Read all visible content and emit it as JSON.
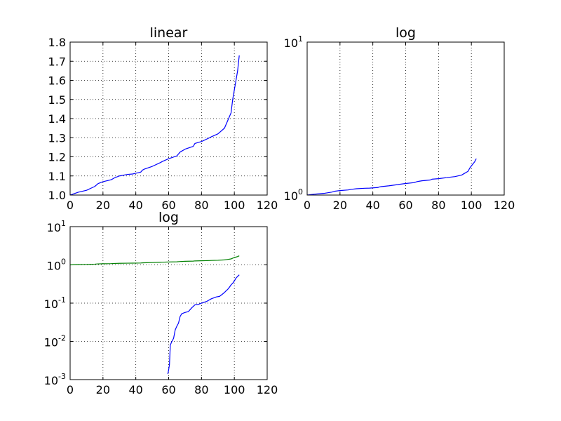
{
  "chart_data": [
    {
      "type": "line",
      "title": "linear",
      "xscale": "linear",
      "yscale": "linear",
      "xlim": [
        0,
        120
      ],
      "ylim": [
        1.0,
        1.8
      ],
      "xticks": [
        0,
        20,
        40,
        60,
        80,
        100,
        120
      ],
      "xtick_labels": [
        "0",
        "20",
        "40",
        "60",
        "80",
        "100",
        "120"
      ],
      "yticks": [
        1.0,
        1.1,
        1.2,
        1.3,
        1.4,
        1.5,
        1.6,
        1.7,
        1.8
      ],
      "ytick_labels": [
        "1.0",
        "1.1",
        "1.2",
        "1.3",
        "1.4",
        "1.5",
        "1.6",
        "1.7",
        "1.8"
      ],
      "grid": true,
      "series": [
        {
          "color": "#0000ff",
          "x": [
            0,
            5,
            10,
            15,
            17,
            20,
            25,
            27,
            30,
            35,
            38,
            40,
            43,
            44,
            45,
            50,
            55,
            56,
            60,
            65,
            67,
            68,
            70,
            75,
            76,
            80,
            85,
            86,
            90,
            94,
            95,
            96,
            97,
            98,
            99,
            100,
            101,
            102,
            103
          ],
          "y": [
            1.0,
            1.015,
            1.025,
            1.045,
            1.06,
            1.07,
            1.08,
            1.09,
            1.1,
            1.108,
            1.11,
            1.114,
            1.12,
            1.13,
            1.135,
            1.15,
            1.17,
            1.175,
            1.19,
            1.205,
            1.225,
            1.23,
            1.24,
            1.255,
            1.27,
            1.28,
            1.3,
            1.305,
            1.32,
            1.35,
            1.37,
            1.39,
            1.41,
            1.43,
            1.5,
            1.55,
            1.6,
            1.65,
            1.73
          ]
        }
      ]
    },
    {
      "type": "line",
      "title": "log",
      "xscale": "linear",
      "yscale": "log",
      "xlim": [
        0,
        120
      ],
      "ylim": [
        1,
        10
      ],
      "xticks": [
        0,
        20,
        40,
        60,
        80,
        100,
        120
      ],
      "xtick_labels": [
        "0",
        "20",
        "40",
        "60",
        "80",
        "100",
        "120"
      ],
      "yticks": [
        1,
        10
      ],
      "ytick_labels": [
        {
          "base": "10",
          "exp": "0"
        },
        {
          "base": "10",
          "exp": "1"
        }
      ],
      "grid": true,
      "series": [
        {
          "color": "#0000ff",
          "x": [
            0,
            5,
            10,
            15,
            17,
            20,
            25,
            27,
            30,
            35,
            38,
            40,
            43,
            44,
            45,
            50,
            55,
            56,
            60,
            65,
            67,
            68,
            70,
            75,
            76,
            80,
            85,
            86,
            90,
            94,
            95,
            96,
            97,
            98,
            99,
            100,
            101,
            102,
            103
          ],
          "y": [
            1.0,
            1.015,
            1.025,
            1.045,
            1.06,
            1.07,
            1.08,
            1.09,
            1.1,
            1.108,
            1.11,
            1.114,
            1.12,
            1.13,
            1.135,
            1.15,
            1.17,
            1.175,
            1.19,
            1.205,
            1.225,
            1.23,
            1.24,
            1.255,
            1.27,
            1.28,
            1.3,
            1.305,
            1.32,
            1.35,
            1.37,
            1.39,
            1.41,
            1.43,
            1.5,
            1.55,
            1.6,
            1.65,
            1.73
          ]
        }
      ]
    },
    {
      "type": "line",
      "title": "log",
      "xscale": "linear",
      "yscale": "log",
      "xlim": [
        0,
        120
      ],
      "ylim": [
        0.001,
        10
      ],
      "xticks": [
        0,
        20,
        40,
        60,
        80,
        100,
        120
      ],
      "xtick_labels": [
        "0",
        "20",
        "40",
        "60",
        "80",
        "100",
        "120"
      ],
      "yticks": [
        0.001,
        0.01,
        0.1,
        1,
        10
      ],
      "ytick_labels": [
        {
          "base": "10",
          "exp": "-3"
        },
        {
          "base": "10",
          "exp": "-2"
        },
        {
          "base": "10",
          "exp": "-1"
        },
        {
          "base": "10",
          "exp": "0"
        },
        {
          "base": "10",
          "exp": "1"
        }
      ],
      "grid": true,
      "series": [
        {
          "color": "#008000",
          "x": [
            0,
            5,
            10,
            15,
            17,
            20,
            25,
            27,
            30,
            35,
            38,
            40,
            43,
            44,
            45,
            50,
            55,
            56,
            60,
            65,
            67,
            68,
            70,
            75,
            76,
            80,
            85,
            86,
            90,
            94,
            95,
            96,
            97,
            98,
            99,
            100,
            101,
            102,
            103
          ],
          "y": [
            1.0,
            1.015,
            1.025,
            1.045,
            1.06,
            1.07,
            1.08,
            1.09,
            1.1,
            1.108,
            1.11,
            1.114,
            1.12,
            1.13,
            1.135,
            1.15,
            1.17,
            1.175,
            1.19,
            1.205,
            1.225,
            1.23,
            1.24,
            1.255,
            1.27,
            1.28,
            1.3,
            1.305,
            1.32,
            1.35,
            1.37,
            1.39,
            1.41,
            1.43,
            1.5,
            1.55,
            1.6,
            1.65,
            1.73
          ]
        },
        {
          "color": "#0000ff",
          "x": [
            59.5,
            60,
            60.5,
            61,
            62,
            63,
            64,
            65,
            66,
            67,
            68,
            70,
            72,
            74,
            76,
            78,
            80,
            83,
            86,
            89,
            91,
            93,
            94,
            95,
            96,
            97,
            98,
            99,
            100,
            101,
            102,
            103
          ],
          "y": [
            0.0014,
            0.0018,
            0.0025,
            0.008,
            0.01,
            0.012,
            0.02,
            0.025,
            0.03,
            0.045,
            0.053,
            0.057,
            0.06,
            0.075,
            0.09,
            0.092,
            0.1,
            0.11,
            0.13,
            0.145,
            0.15,
            0.175,
            0.19,
            0.21,
            0.23,
            0.26,
            0.3,
            0.33,
            0.38,
            0.45,
            0.5,
            0.55
          ]
        }
      ]
    }
  ]
}
